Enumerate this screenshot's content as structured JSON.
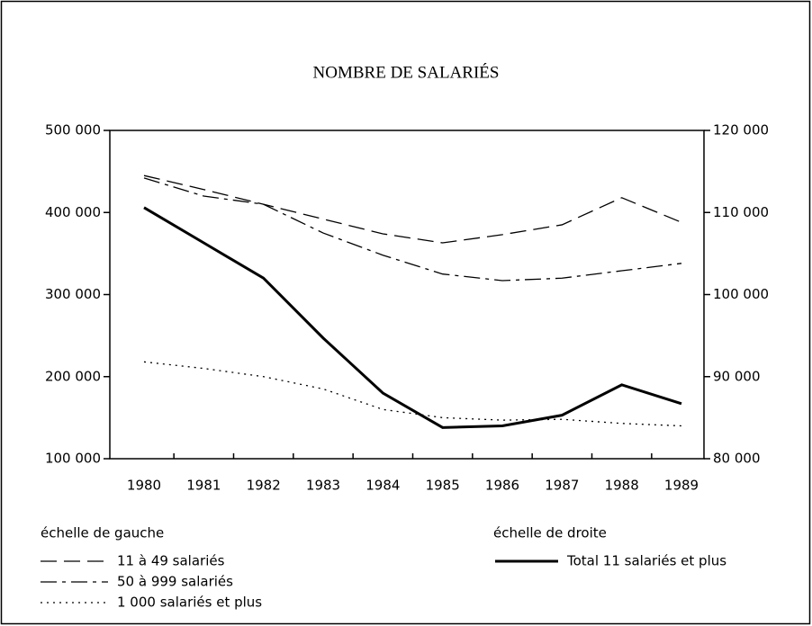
{
  "chart_data": {
    "type": "line",
    "title": "NOMBRE DE SALARIÉS",
    "categories": [
      "1980",
      "1981",
      "1982",
      "1983",
      "1984",
      "1985",
      "1986",
      "1987",
      "1988",
      "1989"
    ],
    "series": [
      {
        "name": "11 à 49 salariés",
        "color": "#000000",
        "style": "dashed",
        "values": [
          445000,
          428000,
          410000,
          392000,
          374000,
          363000,
          373000,
          385000,
          418000,
          388000
        ]
      },
      {
        "name": "50 à 999 salariés",
        "color": "#000000",
        "style": "dashdot",
        "values": [
          442000,
          420000,
          410000,
          375000,
          348000,
          325000,
          317000,
          320000,
          329000,
          338000
        ]
      },
      {
        "name": "1 000 salariés et plus",
        "color": "#000000",
        "style": "dotted",
        "values": [
          218000,
          210000,
          200000,
          185000,
          160000,
          150000,
          147000,
          148000,
          143000,
          140000
        ]
      },
      {
        "name": "Total 11 salariés et plus",
        "color": "#000000",
        "style": "solid",
        "axis": "y2",
        "values": [
          110600,
          106300,
          102000,
          94700,
          88000,
          83800,
          84000,
          85300,
          89000,
          86700
        ]
      }
    ],
    "ylim": [
      100000,
      500000
    ],
    "yticks": [
      {
        "value": 100000,
        "label": "100 000"
      },
      {
        "value": 200000,
        "label": "200 000"
      },
      {
        "value": 300000,
        "label": "300 000"
      },
      {
        "value": 400000,
        "label": "400 000"
      },
      {
        "value": 500000,
        "label": "500 000"
      }
    ],
    "y2lim": [
      80000,
      120000
    ],
    "y2ticks": [
      {
        "value": 80000,
        "label": "80 000"
      },
      {
        "value": 90000,
        "label": "90 000"
      },
      {
        "value": 100000,
        "label": "100 000"
      },
      {
        "value": 110000,
        "label": "110 000"
      },
      {
        "value": 120000,
        "label": "120 000"
      }
    ],
    "legend_left_title": "échelle de gauche",
    "legend_right_title": "échelle de droite"
  }
}
